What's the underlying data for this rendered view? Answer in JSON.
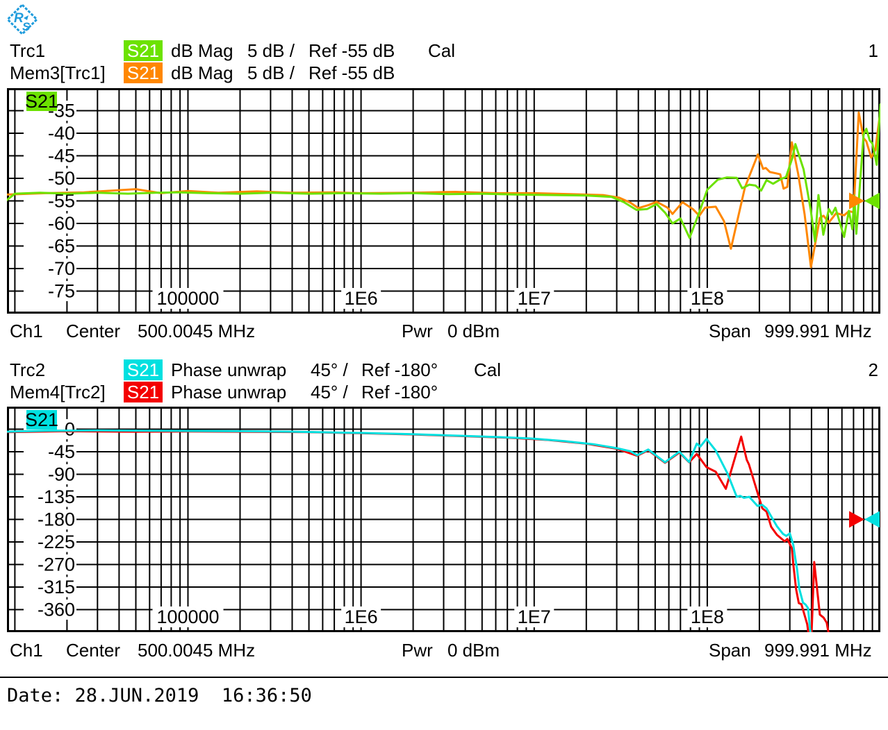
{
  "colors": {
    "trace1": "#6CE200",
    "mem1": "#FF8700",
    "trace2": "#00E0E0",
    "mem2": "#F40000",
    "logo": "#1E9BDC",
    "grid": "#000000",
    "background": "#FFFFFF"
  },
  "trace_headers": [
    {
      "row1": {
        "name": "Trc1",
        "meas": "S21",
        "format": "dB Mag",
        "scale": "5 dB /",
        "ref": "Ref -55 dB",
        "cal": "Cal"
      },
      "row2": {
        "name": "Mem3[Trc1]",
        "meas": "S21",
        "format": "dB Mag",
        "scale": "5 dB /",
        "ref": "Ref -55 dB"
      },
      "number": "1"
    },
    {
      "row1": {
        "name": "Trc2",
        "meas": "S21",
        "format": "Phase unwrap",
        "scale": "45° /",
        "ref": "Ref -180°",
        "cal": "Cal"
      },
      "row2": {
        "name": "Mem4[Trc2]",
        "meas": "S21",
        "format": "Phase unwrap",
        "scale": "45° /",
        "ref": "Ref -180°"
      },
      "number": "2"
    }
  ],
  "channel_bar": {
    "ch": "Ch1",
    "center_label": "Center",
    "center_value": "500.0045 MHz",
    "pwr_label": "Pwr",
    "pwr_value": "0 dBm",
    "span_label": "Span",
    "span_value": "999.991 MHz"
  },
  "footer": {
    "date": "Date: 28.JUN.2019  16:36:50"
  },
  "chart_data": [
    {
      "type": "line",
      "title": "Trc1 S21 dB Mag 5 dB/ Ref -55 dB",
      "x_scale": "log",
      "x_range_hz": [
        9000,
        1000000000
      ],
      "x_ticks": [
        {
          "label": "100000",
          "hz": 100000
        },
        {
          "label": "1E6",
          "hz": 1000000
        },
        {
          "label": "1E7",
          "hz": 10000000
        },
        {
          "label": "1E8",
          "hz": 100000000
        }
      ],
      "y_range": [
        -80,
        -30
      ],
      "y_step": 5,
      "y_ticks": [
        -35,
        -40,
        -45,
        -50,
        -55,
        -60,
        -65,
        -70,
        -75
      ],
      "ref": -55,
      "corner_label": "S21",
      "grid": true,
      "series": [
        {
          "name": "Trc1",
          "role": "trace",
          "color": "trace1",
          "points": [
            [
              9000,
              -54.8
            ],
            [
              10000,
              -53.4
            ],
            [
              14000,
              -53.2
            ],
            [
              20000,
              -53.4
            ],
            [
              30000,
              -53.2
            ],
            [
              45000,
              -53.4
            ],
            [
              65000,
              -53.2
            ],
            [
              90000,
              -53.1
            ],
            [
              130000,
              -53.3
            ],
            [
              200000,
              -53.4
            ],
            [
              300000,
              -53.2
            ],
            [
              500000,
              -53.4
            ],
            [
              800000,
              -53.3
            ],
            [
              1300000,
              -53.4
            ],
            [
              2000000,
              -53.3
            ],
            [
              3200000,
              -53.5
            ],
            [
              5000000,
              -53.4
            ],
            [
              8000000,
              -53.6
            ],
            [
              13000000,
              -53.7
            ],
            [
              20000000,
              -53.8
            ],
            [
              28000000,
              -54.1
            ],
            [
              33000000,
              -55.3
            ],
            [
              39000000,
              -57.0
            ],
            [
              45000000,
              -56.8
            ],
            [
              51000000,
              -55.7
            ],
            [
              57000000,
              -57.6
            ],
            [
              63000000,
              -60.0
            ],
            [
              70000000,
              -58.9
            ],
            [
              79000000,
              -63.2
            ],
            [
              90000000,
              -57.5
            ],
            [
              100000000,
              -52.5
            ],
            [
              115000000,
              -50.3
            ],
            [
              130000000,
              -49.8
            ],
            [
              148000000,
              -49.9
            ],
            [
              159000000,
              -52.2
            ],
            [
              175000000,
              -51.4
            ],
            [
              190000000,
              -51.6
            ],
            [
              205000000,
              -52.7
            ],
            [
              220000000,
              -50.4
            ],
            [
              240000000,
              -51.2
            ],
            [
              265000000,
              -50.2
            ],
            [
              285000000,
              -49.7
            ],
            [
              310000000,
              -45.5
            ],
            [
              323000000,
              -42.4
            ],
            [
              360000000,
              -48.0
            ],
            [
              396000000,
              -57.0
            ],
            [
              419000000,
              -64.0
            ],
            [
              439000000,
              -53.7
            ],
            [
              468000000,
              -62.5
            ],
            [
              504000000,
              -56.8
            ],
            [
              525000000,
              -58.0
            ],
            [
              550000000,
              -56.5
            ],
            [
              617000000,
              -63.0
            ],
            [
              658000000,
              -57.2
            ],
            [
              689000000,
              -61.3
            ],
            [
              707000000,
              -53.8
            ],
            [
              726000000,
              -62.3
            ],
            [
              800000000,
              -40.3
            ],
            [
              830000000,
              -39.0
            ],
            [
              868000000,
              -41.6
            ],
            [
              900000000,
              -42.3
            ],
            [
              953000000,
              -47.0
            ],
            [
              1000000000,
              -33.6
            ]
          ]
        },
        {
          "name": "Mem3[Trc1]",
          "role": "memory",
          "color": "mem1",
          "points": [
            [
              9000,
              -53.6
            ],
            [
              15000,
              -53.3
            ],
            [
              25000,
              -53.1
            ],
            [
              50000,
              -52.4
            ],
            [
              70000,
              -53.3
            ],
            [
              100000,
              -52.8
            ],
            [
              150000,
              -53.2
            ],
            [
              250000,
              -52.9
            ],
            [
              400000,
              -53.2
            ],
            [
              700000,
              -53.1
            ],
            [
              1000000,
              -53.3
            ],
            [
              2000000,
              -53.2
            ],
            [
              3500000,
              -53.0
            ],
            [
              6000000,
              -53.3
            ],
            [
              10000000,
              -53.3
            ],
            [
              16000000,
              -53.5
            ],
            [
              25000000,
              -53.7
            ],
            [
              31000000,
              -54.3
            ],
            [
              36000000,
              -55.4
            ],
            [
              40000000,
              -56.6
            ],
            [
              46000000,
              -55.9
            ],
            [
              51000000,
              -55.2
            ],
            [
              59000000,
              -56.5
            ],
            [
              63000000,
              -57.9
            ],
            [
              72000000,
              -55.3
            ],
            [
              83000000,
              -56.9
            ],
            [
              90000000,
              -58.3
            ],
            [
              97000000,
              -56.5
            ],
            [
              112000000,
              -56.3
            ],
            [
              125000000,
              -59.5
            ],
            [
              137000000,
              -65.6
            ],
            [
              150000000,
              -59.0
            ],
            [
              165000000,
              -52.0
            ],
            [
              196000000,
              -44.7
            ],
            [
              210000000,
              -47.9
            ],
            [
              218000000,
              -47.7
            ],
            [
              230000000,
              -48.6
            ],
            [
              250000000,
              -48.9
            ],
            [
              264000000,
              -49.1
            ],
            [
              276000000,
              -52.3
            ],
            [
              290000000,
              -51.9
            ],
            [
              308000000,
              -42.0
            ],
            [
              335000000,
              -49.0
            ],
            [
              365000000,
              -58.0
            ],
            [
              397000000,
              -69.7
            ],
            [
              447000000,
              -58.8
            ],
            [
              470000000,
              -58.3
            ],
            [
              504000000,
              -59.8
            ],
            [
              556000000,
              -57.7
            ],
            [
              617000000,
              -58.2
            ],
            [
              658000000,
              -57.3
            ],
            [
              700000000,
              -57.5
            ],
            [
              750000000,
              -35.4
            ],
            [
              800000000,
              -41.1
            ],
            [
              830000000,
              -41.8
            ],
            [
              885000000,
              -45.4
            ],
            [
              936000000,
              -43.7
            ],
            [
              1000000000,
              -35.1
            ]
          ]
        }
      ]
    },
    {
      "type": "line",
      "title": "Trc2 S21 Phase unwrap 45°/ Ref -180°",
      "x_scale": "log",
      "x_range_hz": [
        9000,
        1000000000
      ],
      "x_ticks": [
        {
          "label": "100000",
          "hz": 100000
        },
        {
          "label": "1E6",
          "hz": 1000000
        },
        {
          "label": "1E7",
          "hz": 10000000
        },
        {
          "label": "1E8",
          "hz": 100000000
        }
      ],
      "y_range": [
        -405,
        45
      ],
      "y_step": 45,
      "y_ticks": [
        0,
        -45,
        -90,
        -135,
        -180,
        -225,
        -270,
        -315,
        -360
      ],
      "ref": -180,
      "corner_label": "S21",
      "grid": true,
      "series": [
        {
          "name": "Trc2",
          "role": "trace",
          "color": "trace2",
          "points": [
            [
              9000,
              -5
            ],
            [
              15000,
              -3
            ],
            [
              30000,
              -2.5
            ],
            [
              60000,
              -3
            ],
            [
              100000,
              -3.5
            ],
            [
              200000,
              -4
            ],
            [
              400000,
              -5
            ],
            [
              700000,
              -6.5
            ],
            [
              1000000,
              -7.5
            ],
            [
              2000000,
              -10
            ],
            [
              4000000,
              -13.5
            ],
            [
              7000000,
              -16.5
            ],
            [
              10000000,
              -19
            ],
            [
              15000000,
              -24
            ],
            [
              22000000,
              -30
            ],
            [
              30000000,
              -38
            ],
            [
              36000000,
              -44
            ],
            [
              39400000,
              -52
            ],
            [
              45600000,
              -40.5
            ],
            [
              57000000,
              -66
            ],
            [
              69000000,
              -45
            ],
            [
              78600000,
              -65.5
            ],
            [
              87000000,
              -28.7
            ],
            [
              91000000,
              -35
            ],
            [
              99000000,
              -19.4
            ],
            [
              112000000,
              -42.6
            ],
            [
              131000000,
              -88.7
            ],
            [
              148000000,
              -134.8
            ],
            [
              155000000,
              -133
            ],
            [
              163000000,
              -137
            ],
            [
              175000000,
              -135
            ],
            [
              195000000,
              -153
            ],
            [
              208000000,
              -151
            ],
            [
              220000000,
              -158
            ],
            [
              253000000,
              -194
            ],
            [
              274000000,
              -209
            ],
            [
              286000000,
              -213
            ],
            [
              300000000,
              -208
            ],
            [
              314000000,
              -231
            ],
            [
              322000000,
              -256
            ],
            [
              330000000,
              -279
            ],
            [
              340000000,
              -318
            ],
            [
              357000000,
              -346
            ],
            [
              370000000,
              -350
            ],
            [
              382000000,
              -357
            ],
            [
              396000000,
              -412
            ]
          ]
        },
        {
          "name": "Mem4[Trc2]",
          "role": "memory",
          "color": "mem2",
          "points": [
            [
              9000,
              -6
            ],
            [
              20000,
              -4
            ],
            [
              50000,
              -5
            ],
            [
              100000,
              -4.5
            ],
            [
              200000,
              -5
            ],
            [
              500000,
              -6
            ],
            [
              1000000,
              -8
            ],
            [
              2000000,
              -10.5
            ],
            [
              4000000,
              -14
            ],
            [
              7000000,
              -17
            ],
            [
              12000000,
              -21.5
            ],
            [
              20000000,
              -29
            ],
            [
              30000000,
              -39
            ],
            [
              39400000,
              -53
            ],
            [
              45600000,
              -42
            ],
            [
              57000000,
              -67
            ],
            [
              69000000,
              -46.5
            ],
            [
              78600000,
              -66
            ],
            [
              87000000,
              -49.4
            ],
            [
              99000000,
              -75.8
            ],
            [
              112000000,
              -85
            ],
            [
              128000000,
              -119
            ],
            [
              157000000,
              -14.8
            ],
            [
              169000000,
              -61
            ],
            [
              174000000,
              -70
            ],
            [
              191000000,
              -116
            ],
            [
              208000000,
              -158
            ],
            [
              220000000,
              -164.5
            ],
            [
              234000000,
              -195
            ],
            [
              253000000,
              -211
            ],
            [
              274000000,
              -221
            ],
            [
              280000000,
              -223.8
            ],
            [
              290000000,
              -219
            ],
            [
              308000000,
              -237.5
            ],
            [
              314000000,
              -269
            ],
            [
              326000000,
              -319
            ],
            [
              338000000,
              -347
            ],
            [
              350000000,
              -349.4
            ],
            [
              378000000,
              -389
            ],
            [
              386000000,
              -412
            ],
            [
              400000000,
              -412
            ],
            [
              415000000,
              -265
            ],
            [
              447000000,
              -370
            ],
            [
              470000000,
              -376
            ],
            [
              490000000,
              -386
            ],
            [
              505000000,
              -412
            ]
          ]
        }
      ]
    }
  ]
}
